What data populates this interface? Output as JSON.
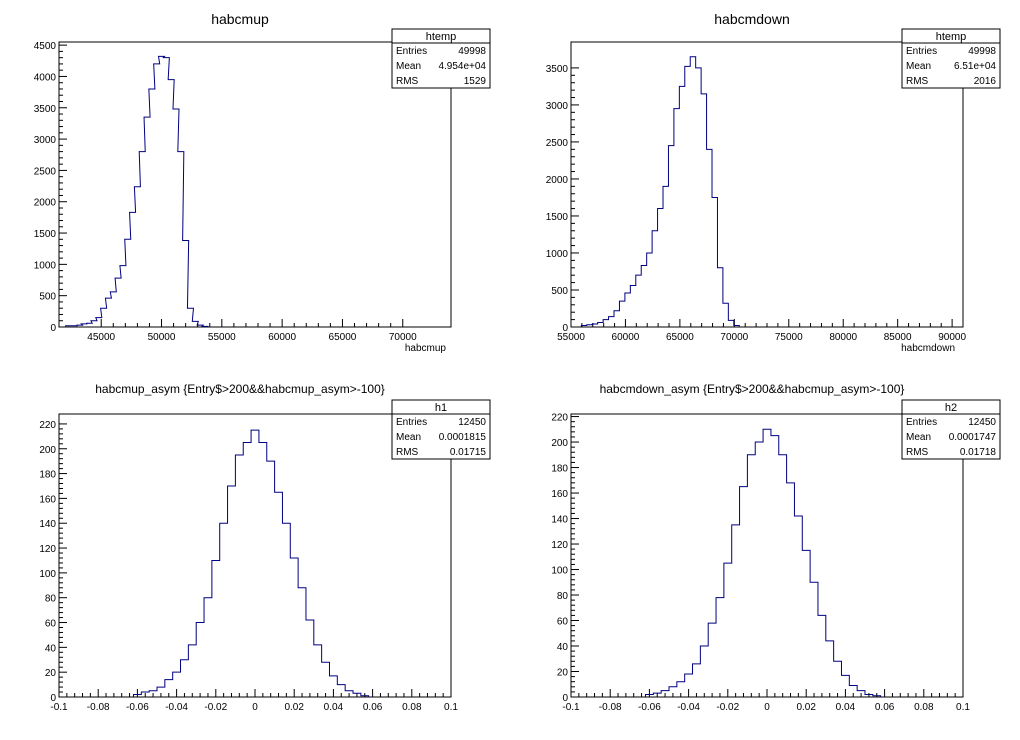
{
  "chart_data": [
    {
      "type": "bar",
      "title": "habcmup",
      "xlabel": "habcmup",
      "ylabel": "",
      "xlim": [
        41500,
        74000
      ],
      "ylim": [
        0,
        4550
      ],
      "xticks": [
        45000,
        50000,
        55000,
        60000,
        65000,
        70000
      ],
      "xtick_labels": [
        "45000",
        "50000",
        "55000",
        "60000",
        "65000",
        "70000"
      ],
      "yticks": [
        0,
        500,
        1000,
        1500,
        2000,
        2500,
        3000,
        3500,
        4000,
        4500
      ],
      "ytick_labels": [
        "0",
        "500",
        "1000",
        "1500",
        "2000",
        "2500",
        "3000",
        "3500",
        "4000",
        "4500"
      ],
      "grid": false,
      "stats": {
        "name": "htemp",
        "rows": [
          {
            "label": "Entries",
            "value": "49998"
          },
          {
            "label": "Mean",
            "value": "4.954e+04"
          },
          {
            "label": "RMS",
            "value": "1529"
          }
        ]
      },
      "series": [
        {
          "x": [
            42300,
            42800,
            43200,
            43600,
            44000,
            44400,
            44800,
            45200,
            45600,
            46000,
            46400,
            46800,
            47200,
            47600,
            48000,
            48400,
            48800,
            49200,
            49600,
            50000,
            50400,
            50800,
            51200,
            51600,
            52000,
            52400,
            52800,
            53200,
            53600
          ],
          "values": [
            20,
            20,
            30,
            50,
            60,
            100,
            150,
            300,
            460,
            560,
            780,
            980,
            1400,
            1830,
            2240,
            2800,
            3350,
            3800,
            4200,
            4320,
            4300,
            3950,
            3480,
            2800,
            1380,
            300,
            90,
            30,
            10
          ]
        }
      ]
    },
    {
      "type": "bar",
      "title": "habcmdown",
      "xlabel": "habcmdown",
      "ylabel": "",
      "xlim": [
        55000,
        91000
      ],
      "ylim": [
        0,
        3850
      ],
      "xticks": [
        55000,
        60000,
        65000,
        70000,
        75000,
        80000,
        85000,
        90000
      ],
      "xtick_labels": [
        "55000",
        "60000",
        "65000",
        "70000",
        "75000",
        "80000",
        "85000",
        "90000"
      ],
      "yticks": [
        0,
        500,
        1000,
        1500,
        2000,
        2500,
        3000,
        3500
      ],
      "ytick_labels": [
        "0",
        "500",
        "1000",
        "1500",
        "2000",
        "2500",
        "3000",
        "3500"
      ],
      "grid": false,
      "stats": {
        "name": "htemp",
        "rows": [
          {
            "label": "Entries",
            "value": "49998"
          },
          {
            "label": "Mean",
            "value": "6.51e+04"
          },
          {
            "label": "RMS",
            "value": "2016"
          }
        ]
      },
      "series": [
        {
          "x": [
            56200,
            56700,
            57200,
            57700,
            58200,
            58700,
            59200,
            59700,
            60200,
            60700,
            61200,
            61700,
            62200,
            62700,
            63200,
            63700,
            64200,
            64700,
            65200,
            65700,
            66200,
            66700,
            67200,
            67700,
            68200,
            68700,
            69200,
            69700,
            70200
          ],
          "values": [
            20,
            30,
            40,
            60,
            100,
            140,
            220,
            350,
            460,
            560,
            700,
            830,
            1000,
            1300,
            1600,
            1900,
            2450,
            2950,
            3250,
            3520,
            3650,
            3500,
            3150,
            2400,
            1750,
            800,
            320,
            90,
            20
          ]
        }
      ]
    },
    {
      "type": "bar",
      "title": "habcmup_asym {Entry$>200&&habcmup_asym>-100}",
      "xlabel": "",
      "ylabel": "",
      "xlim": [
        -0.1,
        0.1
      ],
      "ylim": [
        0,
        228
      ],
      "xticks": [
        -0.1,
        -0.08,
        -0.06,
        -0.04,
        -0.02,
        0,
        0.02,
        0.04,
        0.06,
        0.08,
        0.1
      ],
      "xtick_labels": [
        "-0.1",
        "-0.08",
        "-0.06",
        "-0.04",
        "-0.02",
        "0",
        "0.02",
        "0.04",
        "0.06",
        "0.08",
        "0.1"
      ],
      "yticks": [
        0,
        20,
        40,
        60,
        80,
        100,
        120,
        140,
        160,
        180,
        200,
        220
      ],
      "ytick_labels": [
        "0",
        "20",
        "40",
        "60",
        "80",
        "100",
        "120",
        "140",
        "160",
        "180",
        "200",
        "220"
      ],
      "grid": false,
      "stats": {
        "name": "h1",
        "rows": [
          {
            "label": "Entries",
            "value": "12450"
          },
          {
            "label": "Mean",
            "value": "0.0001815"
          },
          {
            "label": "RMS",
            "value": "0.01715"
          }
        ]
      },
      "series": [
        {
          "x": [
            -0.06,
            -0.056,
            -0.052,
            -0.048,
            -0.044,
            -0.04,
            -0.036,
            -0.032,
            -0.028,
            -0.024,
            -0.02,
            -0.016,
            -0.012,
            -0.008,
            -0.004,
            0,
            0.004,
            0.008,
            0.012,
            0.016,
            0.02,
            0.024,
            0.028,
            0.032,
            0.036,
            0.04,
            0.044,
            0.048,
            0.052,
            0.056
          ],
          "values": [
            2,
            4,
            5,
            8,
            14,
            20,
            30,
            42,
            60,
            80,
            110,
            140,
            170,
            195,
            205,
            215,
            205,
            190,
            165,
            140,
            112,
            88,
            62,
            42,
            28,
            17,
            10,
            5,
            3,
            1
          ]
        }
      ]
    },
    {
      "type": "bar",
      "title": "habcmdown_asym {Entry$>200&&habcmup_asym>-100}",
      "xlabel": "",
      "ylabel": "",
      "xlim": [
        -0.1,
        0.1
      ],
      "ylim": [
        0,
        222
      ],
      "xticks": [
        -0.1,
        -0.08,
        -0.06,
        -0.04,
        -0.02,
        0,
        0.02,
        0.04,
        0.06,
        0.08,
        0.1
      ],
      "xtick_labels": [
        "-0.1",
        "-0.08",
        "-0.06",
        "-0.04",
        "-0.02",
        "0",
        "0.02",
        "0.04",
        "0.06",
        "0.08",
        "0.1"
      ],
      "yticks": [
        0,
        20,
        40,
        60,
        80,
        100,
        120,
        140,
        160,
        180,
        200,
        220
      ],
      "ytick_labels": [
        "0",
        "20",
        "40",
        "60",
        "80",
        "100",
        "120",
        "140",
        "160",
        "180",
        "200",
        "220"
      ],
      "grid": false,
      "stats": {
        "name": "h2",
        "rows": [
          {
            "label": "Entries",
            "value": "12450"
          },
          {
            "label": "Mean",
            "value": "0.0001747"
          },
          {
            "label": "RMS",
            "value": "0.01718"
          }
        ]
      },
      "series": [
        {
          "x": [
            -0.06,
            -0.056,
            -0.052,
            -0.048,
            -0.044,
            -0.04,
            -0.036,
            -0.032,
            -0.028,
            -0.024,
            -0.02,
            -0.016,
            -0.012,
            -0.008,
            -0.004,
            0,
            0.004,
            0.008,
            0.012,
            0.016,
            0.02,
            0.024,
            0.028,
            0.032,
            0.036,
            0.04,
            0.044,
            0.048,
            0.052,
            0.056
          ],
          "values": [
            2,
            3,
            5,
            8,
            12,
            18,
            26,
            40,
            58,
            78,
            105,
            135,
            165,
            190,
            200,
            210,
            205,
            190,
            168,
            142,
            115,
            90,
            64,
            44,
            28,
            17,
            9,
            5,
            2,
            1
          ]
        }
      ]
    }
  ]
}
